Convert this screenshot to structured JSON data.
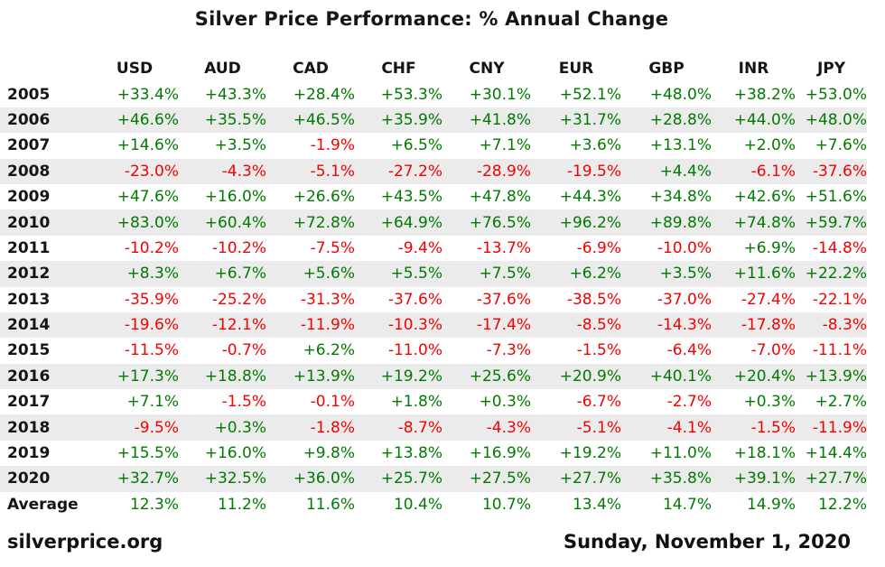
{
  "title": "Silver Price Performance: % Annual Change",
  "footer": {
    "source": "silverprice.org",
    "date": "Sunday, November 1, 2020"
  },
  "colors": {
    "positive": "#007a00",
    "negative": "#f40000",
    "row_alt": "#ebebeb",
    "text": "#151515"
  },
  "chart_data": {
    "type": "table",
    "title": "Silver Price Performance: % Annual Change",
    "columns": [
      "USD",
      "AUD",
      "CAD",
      "CHF",
      "CNY",
      "EUR",
      "GBP",
      "INR",
      "JPY"
    ],
    "rows": [
      {
        "year": "2005",
        "values": [
          "+33.4%",
          "+43.3%",
          "+28.4%",
          "+53.3%",
          "+30.1%",
          "+52.1%",
          "+48.0%",
          "+38.2%",
          "+53.0%"
        ]
      },
      {
        "year": "2006",
        "values": [
          "+46.6%",
          "+35.5%",
          "+46.5%",
          "+35.9%",
          "+41.8%",
          "+31.7%",
          "+28.8%",
          "+44.0%",
          "+48.0%"
        ]
      },
      {
        "year": "2007",
        "values": [
          "+14.6%",
          "+3.5%",
          "-1.9%",
          "+6.5%",
          "+7.1%",
          "+3.6%",
          "+13.1%",
          "+2.0%",
          "+7.6%"
        ]
      },
      {
        "year": "2008",
        "values": [
          "-23.0%",
          "-4.3%",
          "-5.1%",
          "-27.2%",
          "-28.9%",
          "-19.5%",
          "+4.4%",
          "-6.1%",
          "-37.6%"
        ]
      },
      {
        "year": "2009",
        "values": [
          "+47.6%",
          "+16.0%",
          "+26.6%",
          "+43.5%",
          "+47.8%",
          "+44.3%",
          "+34.8%",
          "+42.6%",
          "+51.6%"
        ]
      },
      {
        "year": "2010",
        "values": [
          "+83.0%",
          "+60.4%",
          "+72.8%",
          "+64.9%",
          "+76.5%",
          "+96.2%",
          "+89.8%",
          "+74.8%",
          "+59.7%"
        ]
      },
      {
        "year": "2011",
        "values": [
          "-10.2%",
          "-10.2%",
          "-7.5%",
          "-9.4%",
          "-13.7%",
          "-6.9%",
          "-10.0%",
          "+6.9%",
          "-14.8%"
        ]
      },
      {
        "year": "2012",
        "values": [
          "+8.3%",
          "+6.7%",
          "+5.6%",
          "+5.5%",
          "+7.5%",
          "+6.2%",
          "+3.5%",
          "+11.6%",
          "+22.2%"
        ]
      },
      {
        "year": "2013",
        "values": [
          "-35.9%",
          "-25.2%",
          "-31.3%",
          "-37.6%",
          "-37.6%",
          "-38.5%",
          "-37.0%",
          "-27.4%",
          "-22.1%"
        ]
      },
      {
        "year": "2014",
        "values": [
          "-19.6%",
          "-12.1%",
          "-11.9%",
          "-10.3%",
          "-17.4%",
          "-8.5%",
          "-14.3%",
          "-17.8%",
          "-8.3%"
        ]
      },
      {
        "year": "2015",
        "values": [
          "-11.5%",
          "-0.7%",
          "+6.2%",
          "-11.0%",
          "-7.3%",
          "-1.5%",
          "-6.4%",
          "-7.0%",
          "-11.1%"
        ]
      },
      {
        "year": "2016",
        "values": [
          "+17.3%",
          "+18.8%",
          "+13.9%",
          "+19.2%",
          "+25.6%",
          "+20.9%",
          "+40.1%",
          "+20.4%",
          "+13.9%"
        ]
      },
      {
        "year": "2017",
        "values": [
          "+7.1%",
          "-1.5%",
          "-0.1%",
          "+1.8%",
          "+0.3%",
          "-6.7%",
          "-2.7%",
          "+0.3%",
          "+2.7%"
        ]
      },
      {
        "year": "2018",
        "values": [
          "-9.5%",
          "+0.3%",
          "-1.8%",
          "-8.7%",
          "-4.3%",
          "-5.1%",
          "-4.1%",
          "-1.5%",
          "-11.9%"
        ]
      },
      {
        "year": "2019",
        "values": [
          "+15.5%",
          "+16.0%",
          "+9.8%",
          "+13.8%",
          "+16.9%",
          "+19.2%",
          "+11.0%",
          "+18.1%",
          "+14.4%"
        ]
      },
      {
        "year": "2020",
        "values": [
          "+32.7%",
          "+32.5%",
          "+36.0%",
          "+25.7%",
          "+27.5%",
          "+27.7%",
          "+35.8%",
          "+39.1%",
          "+27.7%"
        ]
      }
    ],
    "average": {
      "label": "Average",
      "values": [
        "12.3%",
        "11.2%",
        "11.6%",
        "10.4%",
        "10.7%",
        "13.4%",
        "14.7%",
        "14.9%",
        "12.2%"
      ]
    }
  }
}
